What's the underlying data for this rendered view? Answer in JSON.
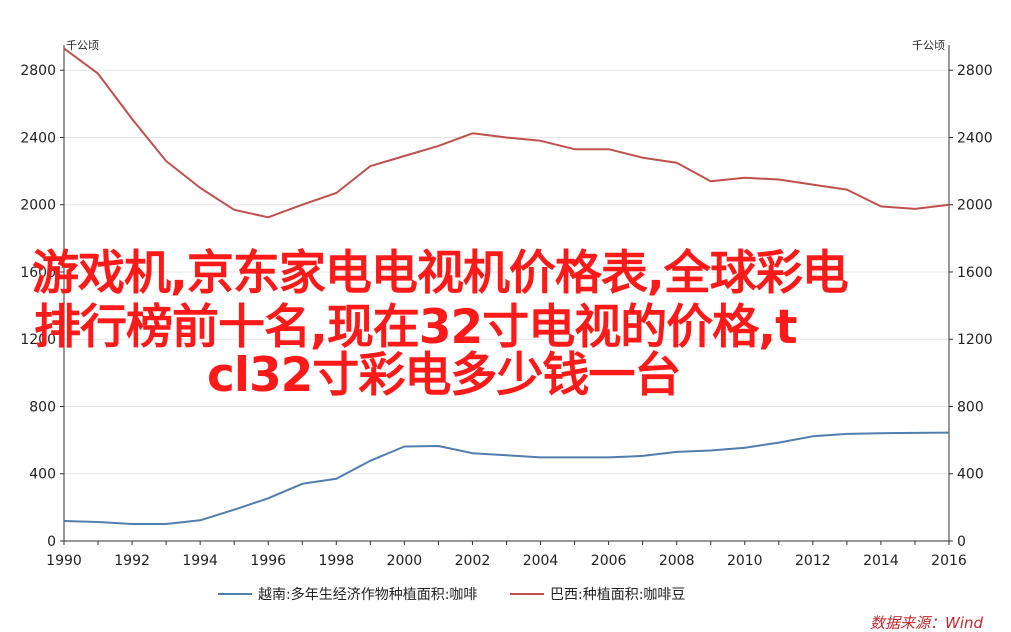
{
  "chart_data": {
    "type": "line",
    "left_axis_unit": "千公顷",
    "right_axis_unit": "千公顷",
    "x_ticks": [
      "1990",
      "1992",
      "1994",
      "1996",
      "1998",
      "2000",
      "2002",
      "2004",
      "2006",
      "2008",
      "2010",
      "2012",
      "2014",
      "2016"
    ],
    "y_ticks": [
      "0",
      "400",
      "800",
      "1200",
      "1600",
      "2000",
      "2400",
      "2800"
    ],
    "xlim": [
      1990,
      2016
    ],
    "ylim": [
      0,
      2950
    ],
    "grid": true,
    "legend_position": "bottom",
    "series": [
      {
        "name": "越南:多年生经济作物种植面积:咖啡",
        "color": "#4f7eaf",
        "x": [
          1990,
          1991,
          1992,
          1993,
          1994,
          1995,
          1996,
          1997,
          1998,
          1999,
          2000,
          2001,
          2002,
          2003,
          2004,
          2005,
          2006,
          2007,
          2008,
          2009,
          2010,
          2011,
          2012,
          2013,
          2014,
          2015,
          2016
        ],
        "y": [
          119,
          113,
          101,
          101,
          123,
          186,
          254,
          340,
          370,
          477,
          562,
          565,
          522,
          510,
          497,
          497,
          497,
          506,
          530,
          538,
          555,
          585,
          623,
          637,
          641,
          643,
          645
        ]
      },
      {
        "name": "巴西:种植面积:咖啡豆",
        "color": "#c0504d",
        "x": [
          1990,
          1991,
          1992,
          1993,
          1994,
          1995,
          1996,
          1997,
          1998,
          1999,
          2000,
          2001,
          2002,
          2003,
          2004,
          2005,
          2006,
          2007,
          2008,
          2009,
          2010,
          2011,
          2012,
          2013,
          2014,
          2015,
          2016
        ],
        "y": [
          2930,
          2780,
          2510,
          2260,
          2100,
          1970,
          1925,
          2000,
          2070,
          2230,
          2290,
          2350,
          2425,
          2400,
          2380,
          2330,
          2330,
          2280,
          2250,
          2140,
          2160,
          2150,
          2120,
          2090,
          1990,
          1975,
          2000
        ]
      }
    ]
  },
  "source_text": "数据来源：Wind",
  "overlay": {
    "color": "#ff1a1a",
    "lines": [
      "游戏机,京东家电电视机价格表,全球彩电",
      "排行榜前十名,现在32寸电视的价格,t",
      "cl32寸彩电多少钱一台"
    ]
  }
}
